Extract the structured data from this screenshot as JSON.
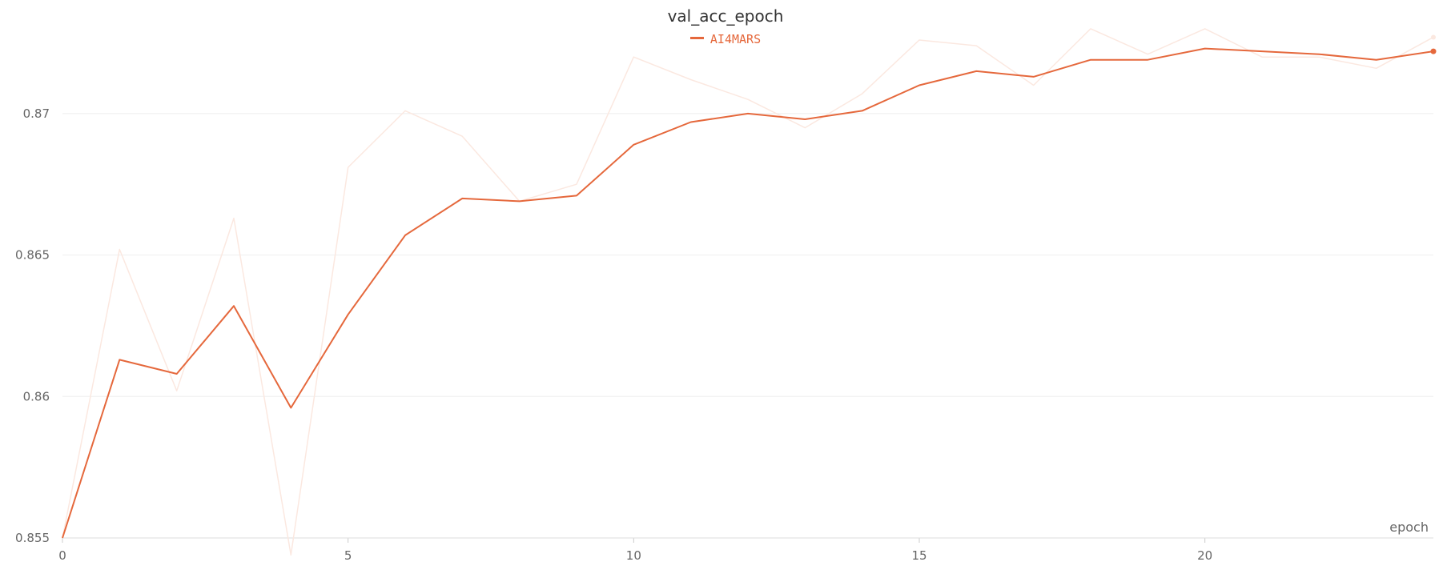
{
  "chart_data": {
    "type": "line",
    "title": "val_acc_epoch",
    "xlabel": "epoch",
    "ylabel": "",
    "xlim": [
      0,
      24
    ],
    "ylim": [
      0.855,
      0.8726
    ],
    "xticks": [
      0,
      5,
      10,
      15,
      20
    ],
    "xtick_labels": [
      "0",
      "5",
      "10",
      "15",
      "20"
    ],
    "yticks": [
      0.855,
      0.86,
      0.865,
      0.87
    ],
    "ytick_labels": [
      "0.855",
      "0.86",
      "0.865",
      "0.87"
    ],
    "grid": true,
    "legend_position": "top-center",
    "series": [
      {
        "name": "AI4MARS",
        "color": "#e5683c",
        "x": [
          0,
          1,
          2,
          3,
          4,
          5,
          6,
          7,
          8,
          9,
          10,
          11,
          12,
          13,
          14,
          15,
          16,
          17,
          18,
          19,
          20,
          21,
          22,
          23,
          24
        ],
        "values": [
          0.855,
          0.8613,
          0.8608,
          0.8632,
          0.8596,
          0.8629,
          0.8657,
          0.867,
          0.8669,
          0.8671,
          0.8689,
          0.8697,
          0.87,
          0.8698,
          0.8701,
          0.871,
          0.8715,
          0.8713,
          0.8719,
          0.8719,
          0.8723,
          0.8722,
          0.8721,
          0.8719,
          0.8722
        ]
      },
      {
        "name": "AI4MARS (raw)",
        "color": "#fbe8e0",
        "x": [
          0,
          1,
          2,
          3,
          4,
          5,
          6,
          7,
          8,
          9,
          10,
          11,
          12,
          13,
          14,
          15,
          16,
          17,
          18,
          19,
          20,
          21,
          22,
          23,
          24
        ],
        "values": [
          0.855,
          0.8652,
          0.8602,
          0.8663,
          0.8544,
          0.8681,
          0.8701,
          0.8692,
          0.8669,
          0.8675,
          0.872,
          0.8712,
          0.8705,
          0.8695,
          0.8707,
          0.8726,
          0.8724,
          0.871,
          0.873,
          0.8721,
          0.873,
          0.872,
          0.872,
          0.8716,
          0.8727
        ]
      }
    ]
  }
}
